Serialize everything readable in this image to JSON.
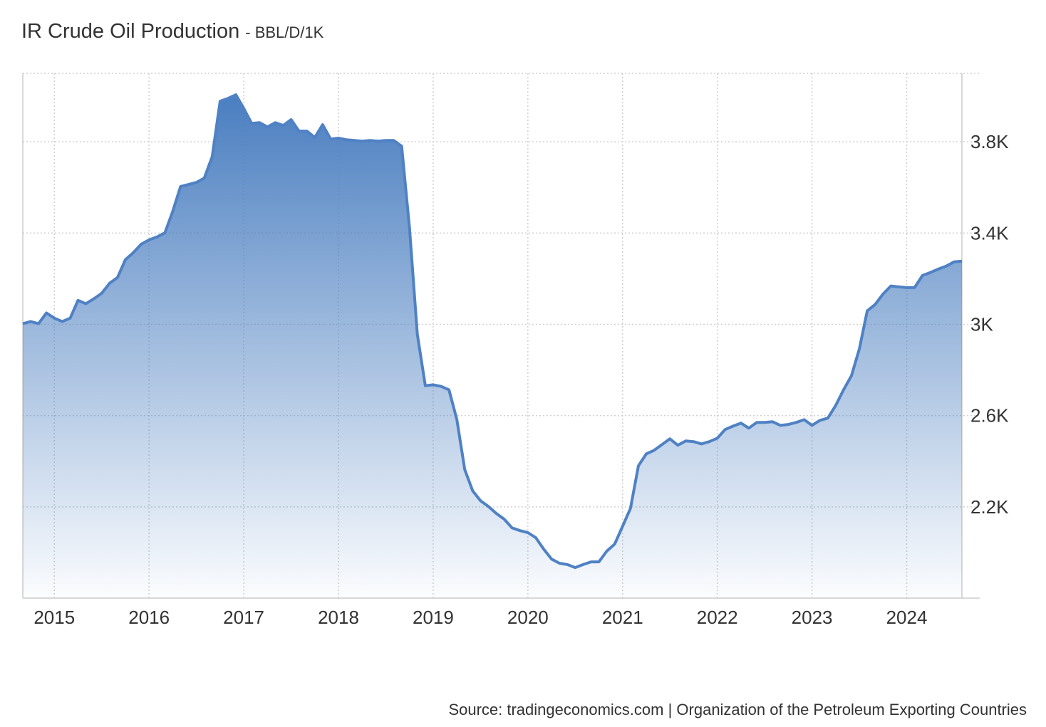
{
  "chart_data": {
    "type": "area",
    "title": "IR Crude Oil Production",
    "subtitle": "- BBL/D/1K",
    "source": "Source: tradingeconomics.com | Organization of the Petroleum Exporting Countries",
    "x": [
      2014.667,
      2014.75,
      2014.833,
      2014.917,
      2015,
      2015.083,
      2015.167,
      2015.25,
      2015.333,
      2015.417,
      2015.5,
      2015.583,
      2015.667,
      2015.75,
      2015.833,
      2015.917,
      2016,
      2016.083,
      2016.167,
      2016.25,
      2016.333,
      2016.417,
      2016.5,
      2016.583,
      2016.667,
      2016.75,
      2016.833,
      2016.917,
      2017,
      2017.083,
      2017.167,
      2017.25,
      2017.333,
      2017.417,
      2017.5,
      2017.583,
      2017.667,
      2017.75,
      2017.833,
      2017.917,
      2018,
      2018.083,
      2018.167,
      2018.25,
      2018.333,
      2018.417,
      2018.5,
      2018.583,
      2018.667,
      2018.75,
      2018.833,
      2018.917,
      2019,
      2019.083,
      2019.167,
      2019.25,
      2019.333,
      2019.417,
      2019.5,
      2019.583,
      2019.667,
      2019.75,
      2019.833,
      2019.917,
      2020,
      2020.083,
      2020.167,
      2020.25,
      2020.333,
      2020.417,
      2020.5,
      2020.583,
      2020.667,
      2020.75,
      2020.833,
      2020.917,
      2021,
      2021.083,
      2021.167,
      2021.25,
      2021.333,
      2021.417,
      2021.5,
      2021.583,
      2021.667,
      2021.75,
      2021.833,
      2021.917,
      2022,
      2022.083,
      2022.167,
      2022.25,
      2022.333,
      2022.417,
      2022.5,
      2022.583,
      2022.667,
      2022.75,
      2022.833,
      2022.917,
      2023,
      2023.083,
      2023.167,
      2023.25,
      2023.333,
      2023.417,
      2023.5,
      2023.583,
      2023.667,
      2023.75,
      2023.833,
      2023.917,
      2024,
      2024.083,
      2024.167,
      2024.25,
      2024.333,
      2024.417,
      2024.5,
      2024.583
    ],
    "values": [
      3003,
      3012,
      3003,
      3050,
      3027,
      3012,
      3027,
      3105,
      3090,
      3112,
      3136,
      3180,
      3205,
      3283,
      3314,
      3351,
      3370,
      3383,
      3401,
      3495,
      3604,
      3613,
      3622,
      3641,
      3735,
      3978,
      3990,
      4006,
      3946,
      3881,
      3884,
      3865,
      3884,
      3872,
      3897,
      3847,
      3847,
      3819,
      3875,
      3812,
      3816,
      3809,
      3806,
      3803,
      3806,
      3803,
      3806,
      3806,
      3781,
      3423,
      2956,
      2731,
      2735,
      2728,
      2713,
      2582,
      2364,
      2270,
      2227,
      2202,
      2171,
      2146,
      2108,
      2096,
      2087,
      2065,
      2015,
      1971,
      1953,
      1947,
      1934,
      1947,
      1959,
      1959,
      2006,
      2037,
      2115,
      2193,
      2380,
      2432,
      2448,
      2473,
      2498,
      2470,
      2489,
      2486,
      2476,
      2486,
      2501,
      2539,
      2554,
      2567,
      2545,
      2570,
      2570,
      2573,
      2557,
      2561,
      2570,
      2582,
      2557,
      2579,
      2589,
      2644,
      2713,
      2775,
      2893,
      3059,
      3087,
      3133,
      3168,
      3164,
      3161,
      3161,
      3214,
      3227,
      3242,
      3255,
      3274,
      3277
    ],
    "color": "#4f81c4",
    "xlim": [
      2014.667,
      2024.583
    ],
    "xticks": [
      2015,
      2016,
      2017,
      2018,
      2019,
      2020,
      2021,
      2022,
      2023,
      2024
    ],
    "ylim": [
      1800,
      4100
    ],
    "yticks": [
      {
        "value": 2200,
        "label": "2.2K"
      },
      {
        "value": 2600,
        "label": "2.6K"
      },
      {
        "value": 3000,
        "label": "3K"
      },
      {
        "value": 3400,
        "label": "3.4K"
      },
      {
        "value": 3800,
        "label": "3.8K"
      }
    ],
    "grid": true
  }
}
